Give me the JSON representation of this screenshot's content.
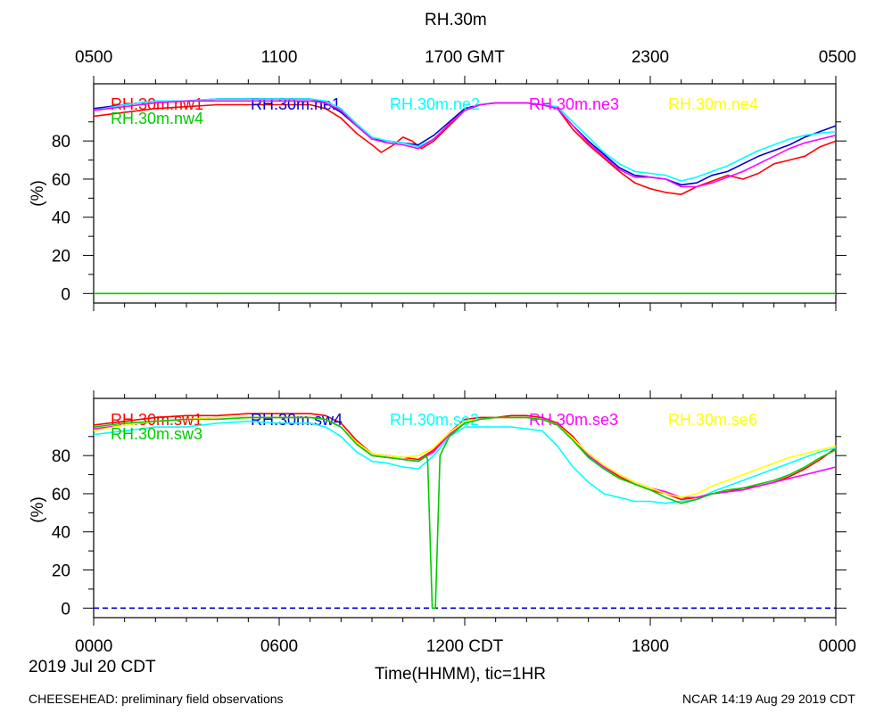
{
  "page": {
    "title": "RH.30m",
    "date_label": "2019 Jul 20 CDT",
    "xaxis_label": "Time(HHMM), tic=1HR",
    "footer_left": "CHEESEHEAD: preliminary field observations",
    "footer_right": "NCAR 14:19 Aug 29 2019 CDT",
    "top_ticks": [
      "0500",
      "1100",
      "1700 GMT",
      "2300",
      "0500"
    ],
    "bottom_ticks": [
      "0000",
      "0600",
      "1200 CDT",
      "1800",
      "0000"
    ]
  },
  "chart_data": [
    {
      "type": "line",
      "title": "RH.30m",
      "xlabel": "Time(HHMM), tic=1HR",
      "ylabel": "(%)",
      "xunit": "hours since 0000 CDT",
      "xlim": [
        0,
        24
      ],
      "ylim": [
        -5,
        110
      ],
      "yticks": [
        0,
        20,
        40,
        60,
        80
      ],
      "reference_line": 0,
      "series": [
        {
          "name": "RH.30m.nw1",
          "color": "#ff0000",
          "x": [
            0,
            1,
            2,
            3,
            4,
            5,
            6,
            7,
            7.5,
            8,
            8.5,
            9,
            9.3,
            9.7,
            10,
            10.3,
            10.6,
            11,
            11.5,
            12,
            12.5,
            13,
            13.5,
            14,
            14.5,
            15,
            15.5,
            16,
            16.5,
            17,
            17.5,
            18,
            18.5,
            19,
            19.5,
            20,
            20.5,
            21,
            21.5,
            22,
            22.5,
            23,
            23.5,
            24
          ],
          "y": [
            93,
            95,
            97,
            98,
            99,
            99,
            99,
            99,
            97,
            92,
            84,
            78,
            74,
            78,
            82,
            80,
            76,
            80,
            88,
            96,
            99,
            100,
            100,
            100,
            99,
            97,
            86,
            78,
            71,
            64,
            58,
            55,
            53,
            52,
            56,
            59,
            62,
            60,
            63,
            68,
            70,
            72,
            77,
            80
          ]
        },
        {
          "name": "RH.30m.ne1",
          "color": "#0000cc",
          "x": [
            0,
            1,
            2,
            3,
            4,
            5,
            6,
            7,
            7.5,
            8,
            8.5,
            9,
            9.5,
            10,
            10.5,
            11,
            11.5,
            12,
            12.5,
            13,
            13.5,
            14,
            14.5,
            15,
            15.5,
            16,
            16.5,
            17,
            17.5,
            18,
            18.5,
            19,
            19.5,
            20,
            20.5,
            21,
            21.5,
            22,
            22.5,
            23,
            23.5,
            24
          ],
          "y": [
            97,
            99,
            101,
            101,
            102,
            102,
            102,
            102,
            100,
            95,
            88,
            81,
            80,
            79,
            78,
            83,
            90,
            97,
            99,
            100,
            100,
            100,
            99,
            97,
            88,
            80,
            73,
            66,
            62,
            61,
            60,
            57,
            58,
            62,
            64,
            68,
            72,
            75,
            78,
            82,
            85,
            88
          ]
        },
        {
          "name": "RH.30m.ne2",
          "color": "#00ffff",
          "x": [
            0,
            1,
            2,
            3,
            4,
            5,
            6,
            7,
            7.5,
            8,
            8.5,
            9,
            9.5,
            10,
            10.5,
            11,
            11.5,
            12,
            12.5,
            13,
            13.5,
            14,
            14.5,
            15,
            15.5,
            16,
            16.5,
            17,
            17.5,
            18,
            18.5,
            19,
            19.5,
            20,
            20.5,
            21,
            21.5,
            22,
            22.5,
            23,
            23.5,
            24
          ],
          "y": [
            96,
            99,
            101,
            101,
            102,
            102,
            102,
            102,
            101,
            97,
            89,
            82,
            80,
            79,
            77,
            81,
            89,
            96,
            99,
            100,
            100,
            100,
            99,
            98,
            90,
            82,
            74,
            68,
            64,
            63,
            62,
            59,
            61,
            64,
            67,
            71,
            75,
            78,
            81,
            83,
            84,
            85
          ]
        },
        {
          "name": "RH.30m.ne3",
          "color": "#ff00ff",
          "x": [
            0,
            1,
            2,
            3,
            4,
            5,
            6,
            7,
            7.5,
            8,
            8.5,
            9,
            9.5,
            10,
            10.5,
            11,
            11.5,
            12,
            12.5,
            13,
            13.5,
            14,
            14.5,
            15,
            15.5,
            16,
            16.5,
            17,
            17.5,
            18,
            18.5,
            19,
            19.5,
            20,
            20.5,
            21,
            21.5,
            22,
            22.5,
            23,
            23.5,
            24
          ],
          "y": [
            96,
            98,
            100,
            101,
            101,
            101,
            101,
            101,
            100,
            96,
            88,
            81,
            79,
            78,
            76,
            81,
            89,
            96,
            99,
            100,
            100,
            100,
            99,
            97,
            88,
            79,
            72,
            65,
            61,
            61,
            60,
            56,
            56,
            58,
            61,
            64,
            68,
            72,
            76,
            79,
            81,
            83
          ]
        },
        {
          "name": "RH.30m.ne4",
          "color": "#ffff00",
          "x": [
            0,
            24
          ],
          "y": [
            0,
            0
          ],
          "dashed": true
        },
        {
          "name": "RH.30m.nw4",
          "color": "#00cc00",
          "x": [
            0,
            24
          ],
          "y": [
            0,
            0
          ]
        }
      ]
    },
    {
      "type": "line",
      "xlabel": "Time(HHMM), tic=1HR",
      "ylabel": "(%)",
      "xunit": "hours since 0000 CDT",
      "xlim": [
        0,
        24
      ],
      "ylim": [
        -5,
        110
      ],
      "yticks": [
        0,
        20,
        40,
        60,
        80
      ],
      "reference_line": 0,
      "series": [
        {
          "name": "RH.30m.sw1",
          "color": "#ff0000",
          "x": [
            0,
            1,
            2,
            3,
            4,
            5,
            6,
            7,
            7.5,
            8,
            8.5,
            9,
            9.5,
            10,
            10.5,
            11,
            11.5,
            12,
            12.5,
            13,
            13.5,
            14,
            14.5,
            15,
            15.5,
            16,
            16.5,
            17,
            17.5,
            18,
            18.5,
            19,
            19.5,
            20,
            20.5,
            21,
            21.5,
            22,
            22.5,
            23,
            23.5,
            24
          ],
          "y": [
            96,
            98,
            100,
            101,
            101,
            102,
            102,
            102,
            101,
            97,
            88,
            81,
            80,
            79,
            78,
            83,
            92,
            99,
            100,
            100,
            101,
            101,
            100,
            97,
            90,
            80,
            74,
            69,
            65,
            62,
            60,
            57,
            58,
            60,
            61,
            63,
            64,
            66,
            69,
            73,
            78,
            84
          ]
        },
        {
          "name": "RH.30m.sw4",
          "color": "#0000cc",
          "x": [
            0,
            24
          ],
          "y": [
            0,
            0
          ],
          "dashed": true
        },
        {
          "name": "RH.30m.se2",
          "color": "#00ffff",
          "x": [
            0,
            1,
            2,
            3,
            4,
            5,
            6,
            7,
            7.5,
            8,
            8.5,
            9,
            9.5,
            10,
            10.5,
            11,
            11.5,
            12,
            12.5,
            13,
            13.5,
            14,
            14.5,
            15,
            15.5,
            16,
            16.5,
            17,
            17.5,
            18,
            18.5,
            19,
            19.5,
            20,
            20.5,
            21,
            21.5,
            22,
            22.5,
            23,
            23.5,
            24
          ],
          "y": [
            91,
            93,
            95,
            95,
            97,
            98,
            97,
            97,
            95,
            90,
            82,
            77,
            76,
            74,
            73,
            80,
            90,
            95,
            95,
            95,
            95,
            94,
            93,
            85,
            74,
            66,
            60,
            58,
            56,
            56,
            55,
            56,
            57,
            61,
            64,
            67,
            70,
            73,
            76,
            79,
            82,
            84
          ]
        },
        {
          "name": "RH.30m.se3",
          "color": "#ff00ff",
          "x": [
            0,
            1,
            2,
            3,
            4,
            5,
            6,
            7,
            7.5,
            8,
            8.5,
            9,
            9.5,
            10,
            10.5,
            11,
            11.5,
            12,
            12.5,
            13,
            13.5,
            14,
            14.5,
            15,
            15.5,
            16,
            16.5,
            17,
            17.5,
            18,
            18.5,
            19,
            19.5,
            20,
            20.5,
            21,
            21.5,
            22,
            22.5,
            23,
            23.5,
            24
          ],
          "y": [
            94,
            96,
            98,
            99,
            100,
            100,
            100,
            100,
            99,
            95,
            87,
            80,
            79,
            78,
            77,
            82,
            91,
            97,
            99,
            100,
            100,
            100,
            99,
            96,
            89,
            80,
            74,
            70,
            66,
            63,
            61,
            58,
            58,
            60,
            61,
            62,
            64,
            66,
            68,
            70,
            72,
            74
          ]
        },
        {
          "name": "RH.30m.se6",
          "color": "#ffff00",
          "x": [
            0,
            1,
            2,
            3,
            4,
            5,
            6,
            7,
            7.5,
            8,
            8.5,
            9,
            9.5,
            10,
            10.5,
            11,
            11.5,
            12,
            12.5,
            13,
            13.5,
            14,
            14.5,
            15,
            15.5,
            16,
            16.5,
            17,
            17.5,
            18,
            18.5,
            19,
            19.5,
            20,
            20.5,
            21,
            21.5,
            22,
            22.5,
            23,
            23.5,
            24
          ],
          "y": [
            93,
            96,
            98,
            99,
            100,
            100,
            100,
            100,
            99,
            95,
            87,
            81,
            80,
            79,
            80,
            84,
            92,
            98,
            99,
            100,
            100,
            100,
            99,
            96,
            89,
            81,
            75,
            70,
            66,
            63,
            60,
            58,
            60,
            64,
            67,
            70,
            73,
            76,
            79,
            81,
            83,
            85
          ]
        },
        {
          "name": "RH.30m.sw3",
          "color": "#00cc00",
          "x": [
            0,
            1,
            2,
            3,
            4,
            5,
            6,
            7,
            7.5,
            8,
            8.5,
            9,
            9.5,
            10,
            10.5,
            10.75,
            10.8,
            10.95,
            11.05,
            11.2,
            11.5,
            12,
            12.5,
            13,
            13.5,
            14,
            14.5,
            15,
            15.5,
            16,
            16.5,
            17,
            17.5,
            18,
            18.5,
            19,
            19.5,
            20,
            20.5,
            21,
            21.5,
            22,
            22.5,
            23,
            23.5,
            24
          ],
          "y": [
            95,
            97,
            98,
            99,
            99,
            100,
            100,
            100,
            99,
            95,
            86,
            80,
            79,
            78,
            77,
            80,
            78,
            0,
            0,
            80,
            90,
            97,
            99,
            100,
            100,
            100,
            99,
            96,
            88,
            79,
            73,
            68,
            65,
            62,
            58,
            55,
            57,
            60,
            62,
            63,
            65,
            67,
            70,
            74,
            79,
            83
          ]
        }
      ]
    }
  ]
}
